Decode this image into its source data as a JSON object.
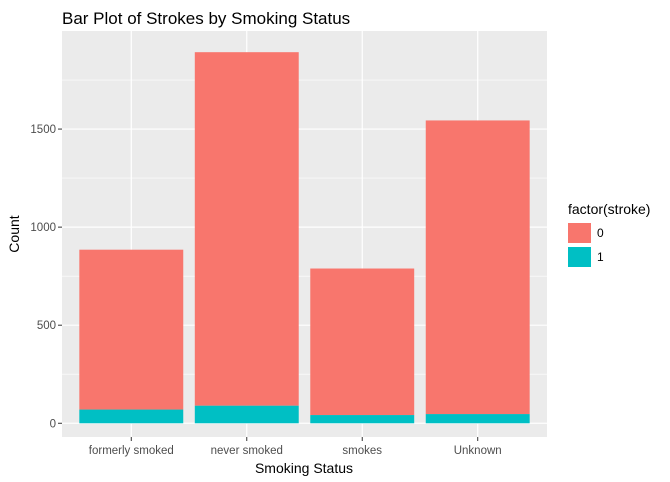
{
  "chart_data": {
    "type": "bar",
    "stacked": true,
    "title": "Bar Plot of Strokes by Smoking Status",
    "xlabel": "Smoking Status",
    "ylabel": "Count",
    "categories": [
      "formerly smoked",
      "never smoked",
      "smokes",
      "Unknown"
    ],
    "series": [
      {
        "name": "0",
        "color": "#F8766D",
        "values": [
          815,
          1802,
          747,
          1497
        ]
      },
      {
        "name": "1",
        "color": "#00BFC4",
        "values": [
          70,
          90,
          42,
          47
        ]
      }
    ],
    "ylim": [
      -70,
      2000
    ],
    "yticks": [
      0,
      500,
      1000,
      1500
    ],
    "grid": true,
    "legend": {
      "title": "factor(stroke)",
      "position": "right"
    }
  }
}
